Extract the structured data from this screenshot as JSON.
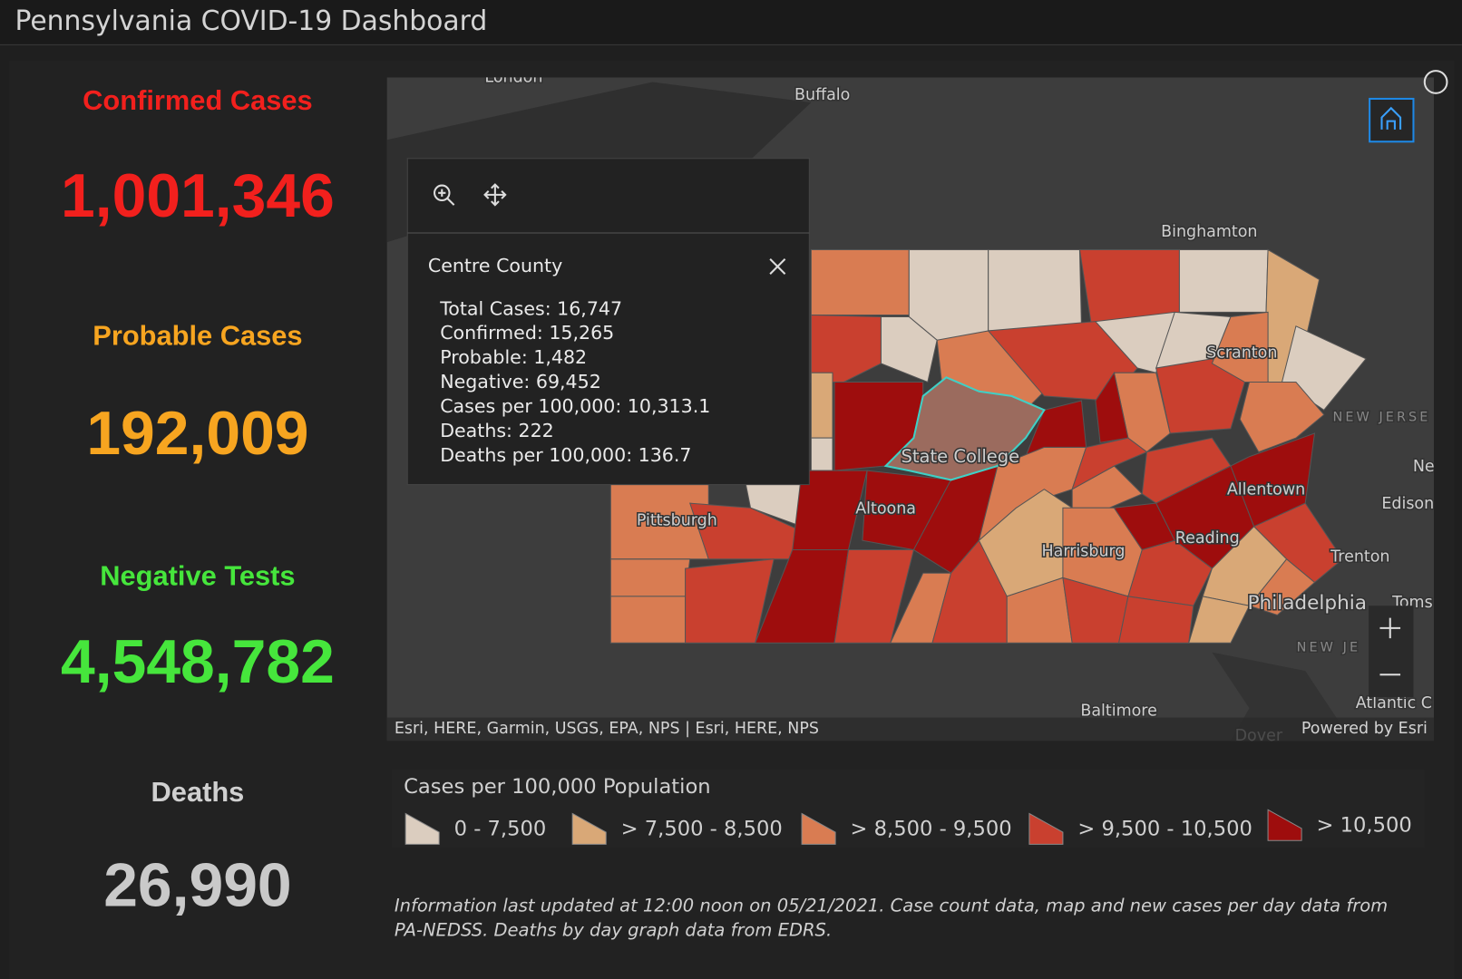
{
  "header": {
    "title": "Pennsylvania COVID-19 Dashboard"
  },
  "stats": [
    {
      "label": "Confirmed Cases",
      "value": "1,001,346",
      "color": "#f2201d"
    },
    {
      "label": "Probable Cases",
      "value": "192,009",
      "color": "#f7a520"
    },
    {
      "label": "Negative Tests",
      "value": "4,548,782",
      "color": "#46e63c"
    },
    {
      "label": "Deaths",
      "value": "26,990",
      "color": "#c9c9c9"
    }
  ],
  "map": {
    "labels": [
      "London",
      "Buffalo",
      "Binghamton",
      "Scranton",
      "NEW JERSE",
      "Ne",
      "Edison",
      "Allentown",
      "Reading",
      "Trenton",
      "Philadelphia",
      "Toms",
      "NEW JE",
      "Atlantic C",
      "Baltimore",
      "Dover",
      "Pittsburgh",
      "Altoona",
      "Harrisburg",
      "State College"
    ],
    "popup": {
      "title": "Centre County",
      "lines": [
        "Total Cases: 16,747",
        "Confirmed: 15,265",
        "Probable: 1,482",
        "Negative: 69,452",
        "Cases per 100,000: 10,313.1",
        "Deaths: 222",
        "Deaths per 100,000: 136.7"
      ]
    },
    "attribution": "Esri, HERE, Garmin, USGS, EPA, NPS | Esri, HERE, NPS",
    "powered_by": "Powered by Esri"
  },
  "legend": {
    "title": "Cases per 100,000 Population",
    "items": [
      {
        "label": "0 - 7,500",
        "color": "#dbcdbf"
      },
      {
        "label": "> 7,500 - 8,500",
        "color": "#d9a877"
      },
      {
        "label": "> 8,500 - 9,500",
        "color": "#d97c52"
      },
      {
        "label": "> 9,500 - 10,500",
        "color": "#c9402f"
      },
      {
        "label": "> 10,500",
        "color": "#9e0d0d"
      }
    ]
  },
  "footer": {
    "lines": [
      "Information last updated at 12:00 noon on 05/21/2021. Case count data, map and new cases per day data from",
      "PA-NEDSS.  Deaths by day graph data from EDRS."
    ]
  }
}
